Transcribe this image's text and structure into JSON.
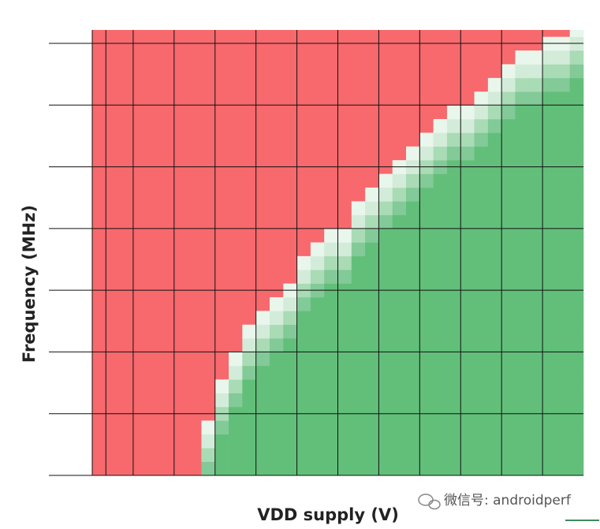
{
  "chart_data": {
    "type": "shmoo",
    "x_label": "VDD supply (V)",
    "y_label": "Frequency (MHz)",
    "values": [
      0,
      0,
      0,
      0,
      0,
      0,
      0,
      0,
      4,
      7,
      9,
      11,
      12,
      13,
      14,
      16,
      17,
      18,
      18,
      20,
      21,
      22,
      23,
      24,
      25,
      26,
      27,
      27,
      28,
      29,
      30,
      31,
      31,
      32,
      32,
      33
    ],
    "ylim": [
      0,
      32.5
    ],
    "fail_color": "#f7696d",
    "pass_color": "#62bf7a",
    "grid": true
  },
  "watermark": "微信号: androidperf"
}
